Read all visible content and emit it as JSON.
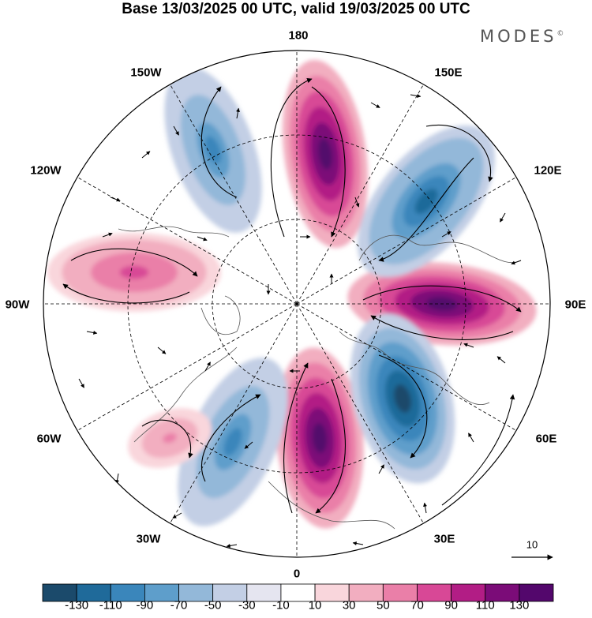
{
  "title": "Base 13/03/2025 00 UTC, valid 19/03/2025 00 UTC",
  "brand": "MODES",
  "brand_mark": "©",
  "longitude_labels": {
    "lon_180": "180",
    "lon_150e": "150E",
    "lon_120e": "120E",
    "lon_90e": "90E",
    "lon_60e": "60E",
    "lon_30e": "30E",
    "lon_0": "0",
    "lon_30w": "30W",
    "lon_60w": "60W",
    "lon_90w": "90W",
    "lon_120w": "120W",
    "lon_150w": "150W"
  },
  "reference_vector": {
    "label": "10",
    "magnitude": 10
  },
  "colorbar": {
    "tick_labels": [
      "-130",
      "-110",
      "-90",
      "-70",
      "-50",
      "-30",
      "-10",
      "10",
      "30",
      "50",
      "70",
      "90",
      "110",
      "130"
    ],
    "colors": [
      "#1b4a6b",
      "#1f6a9a",
      "#3a86bb",
      "#5e9ecb",
      "#93b8d9",
      "#c3cfe5",
      "#e5e5f0",
      "#ffffff",
      "#f9d6dc",
      "#f2aec0",
      "#ea7fa8",
      "#d84896",
      "#b21d85",
      "#7b0c78",
      "#53076c"
    ]
  },
  "field": {
    "anomalies": [
      {
        "name": "positive-anomaly-north-pacific",
        "sign": "positive",
        "peak": 130
      },
      {
        "name": "positive-anomaly-siberia",
        "sign": "positive",
        "peak": 130
      },
      {
        "name": "positive-anomaly-europe",
        "sign": "positive",
        "peak": 130
      },
      {
        "name": "positive-anomaly-north-america",
        "sign": "positive",
        "peak": 70
      },
      {
        "name": "negative-anomaly-east-asia",
        "sign": "negative",
        "peak": -110
      },
      {
        "name": "negative-anomaly-alaska",
        "sign": "negative",
        "peak": -90
      },
      {
        "name": "negative-anomaly-ural",
        "sign": "negative",
        "peak": -130
      },
      {
        "name": "negative-anomaly-north-atlantic",
        "sign": "negative",
        "peak": -90
      },
      {
        "name": "positive-anomaly-atlantic",
        "sign": "positive",
        "peak": 50
      }
    ]
  }
}
